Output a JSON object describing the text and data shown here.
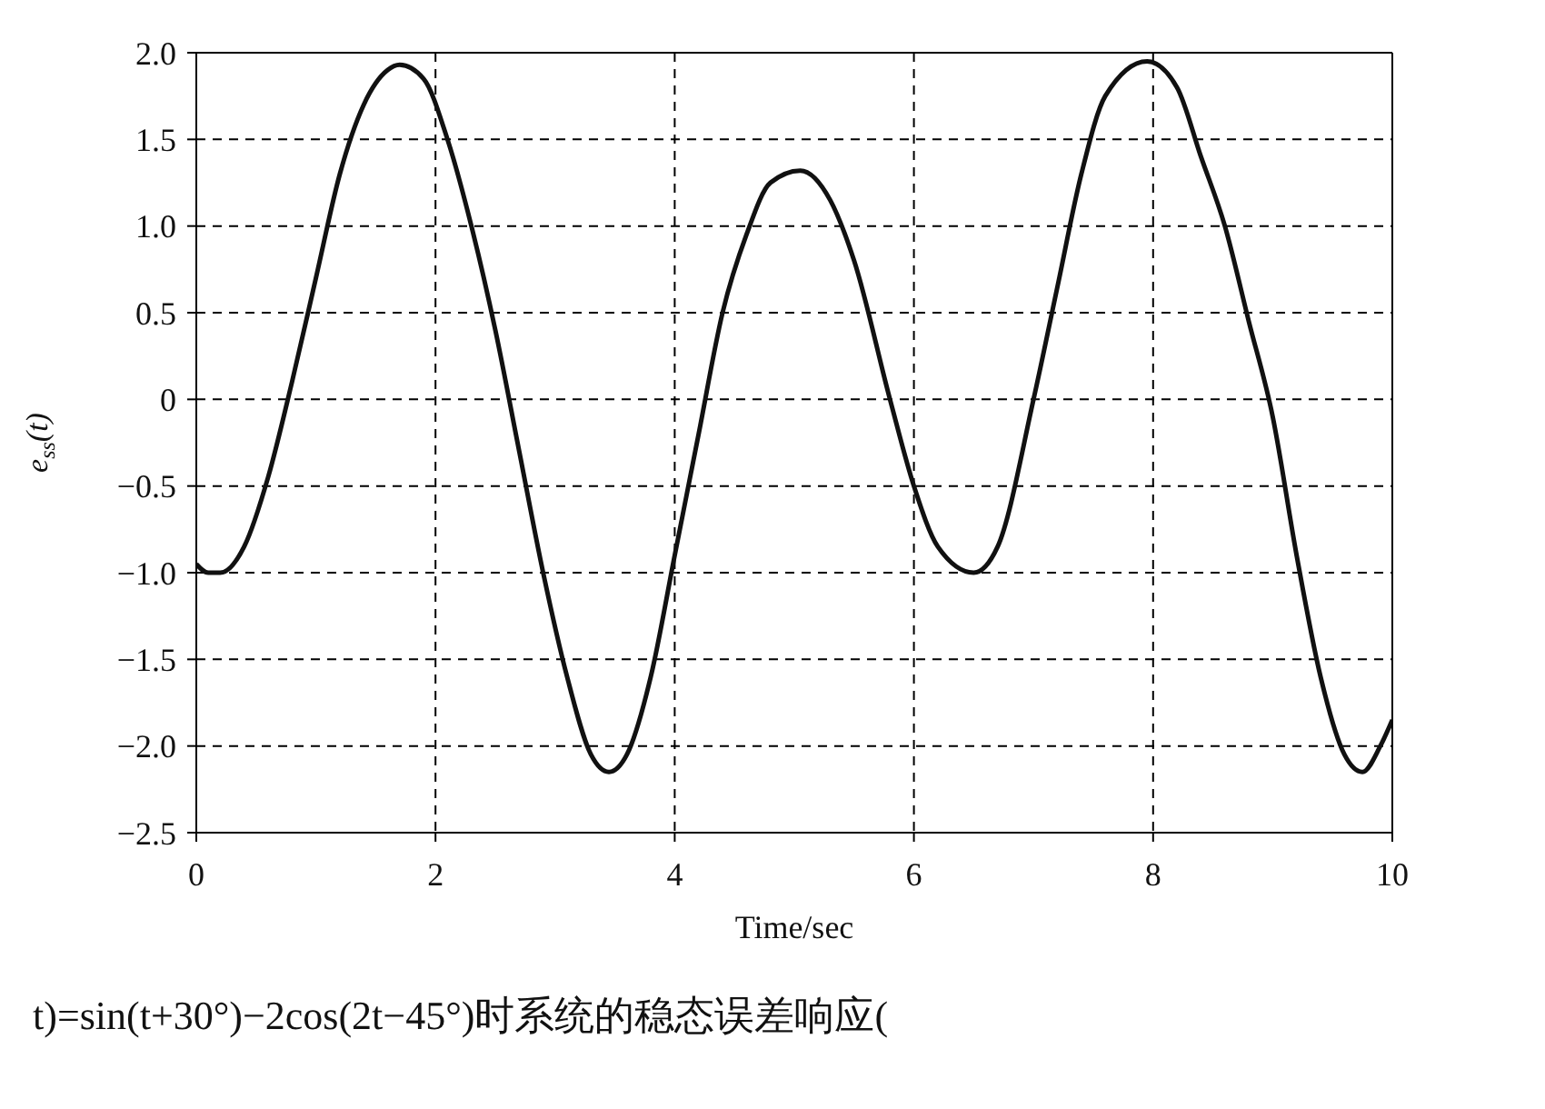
{
  "chart_data": {
    "type": "line",
    "xlabel": "Time/sec",
    "ylabel": "e$_{ss}$(t)",
    "annotations": [
      "t)=sin(t+30°)−2cos(2t−45°)时系统的稳态误差响应("
    ],
    "x": [
      0,
      0.1,
      0.2,
      0.4,
      0.6,
      0.8,
      1.0,
      1.2,
      1.4,
      1.6,
      1.7,
      1.9,
      2.1,
      2.3,
      2.5,
      2.7,
      2.9,
      3.1,
      3.3,
      3.45,
      3.6,
      3.8,
      4.0,
      4.2,
      4.4,
      4.6,
      4.8,
      5.05,
      5.3,
      5.5,
      5.8,
      6.0,
      6.2,
      6.5,
      6.7,
      7.0,
      7.2,
      7.4,
      7.6,
      7.95,
      8.2,
      8.4,
      8.6,
      8.8,
      9.0,
      9.2,
      9.4,
      9.6,
      9.75,
      9.9,
      10
    ],
    "series": [
      {
        "color": "#111111",
        "values": [
          -0.95,
          -1.0,
          -1.0,
          -0.85,
          -0.45,
          0.1,
          0.7,
          1.3,
          1.7,
          1.9,
          1.93,
          1.85,
          1.5,
          1.0,
          0.4,
          -0.3,
          -1.0,
          -1.6,
          -2.05,
          -2.15,
          -2.05,
          -1.6,
          -0.9,
          -0.2,
          0.5,
          0.95,
          1.25,
          1.32,
          1.15,
          0.8,
          0.0,
          -0.5,
          -0.85,
          -1.0,
          -0.85,
          0.0,
          0.65,
          1.3,
          1.75,
          1.95,
          1.8,
          1.4,
          1.0,
          0.45,
          -0.1,
          -0.9,
          -1.6,
          -2.05,
          -2.15,
          -2.0,
          -1.85
        ]
      }
    ],
    "xlim": [
      0,
      10
    ],
    "xticks": [
      0,
      2,
      4,
      6,
      8,
      10
    ],
    "ylim": [
      -2.5,
      2.0
    ],
    "yticks": [
      {
        "value": -2.5,
        "label": "−2.5"
      },
      {
        "value": -2,
        "label": "−2.0"
      },
      {
        "value": -1.5,
        "label": "−1.5"
      },
      {
        "value": -1,
        "label": "−1.0"
      },
      {
        "value": -0.5,
        "label": "−0.5"
      },
      {
        "value": 0,
        "label": "0"
      },
      {
        "value": 0.5,
        "label": "0.5"
      },
      {
        "value": 1,
        "label": "1.0"
      },
      {
        "value": 1.5,
        "label": "1.5"
      },
      {
        "value": 2,
        "label": "2.0"
      }
    ],
    "grid": true,
    "marker": "none",
    "line_style": "solid"
  }
}
